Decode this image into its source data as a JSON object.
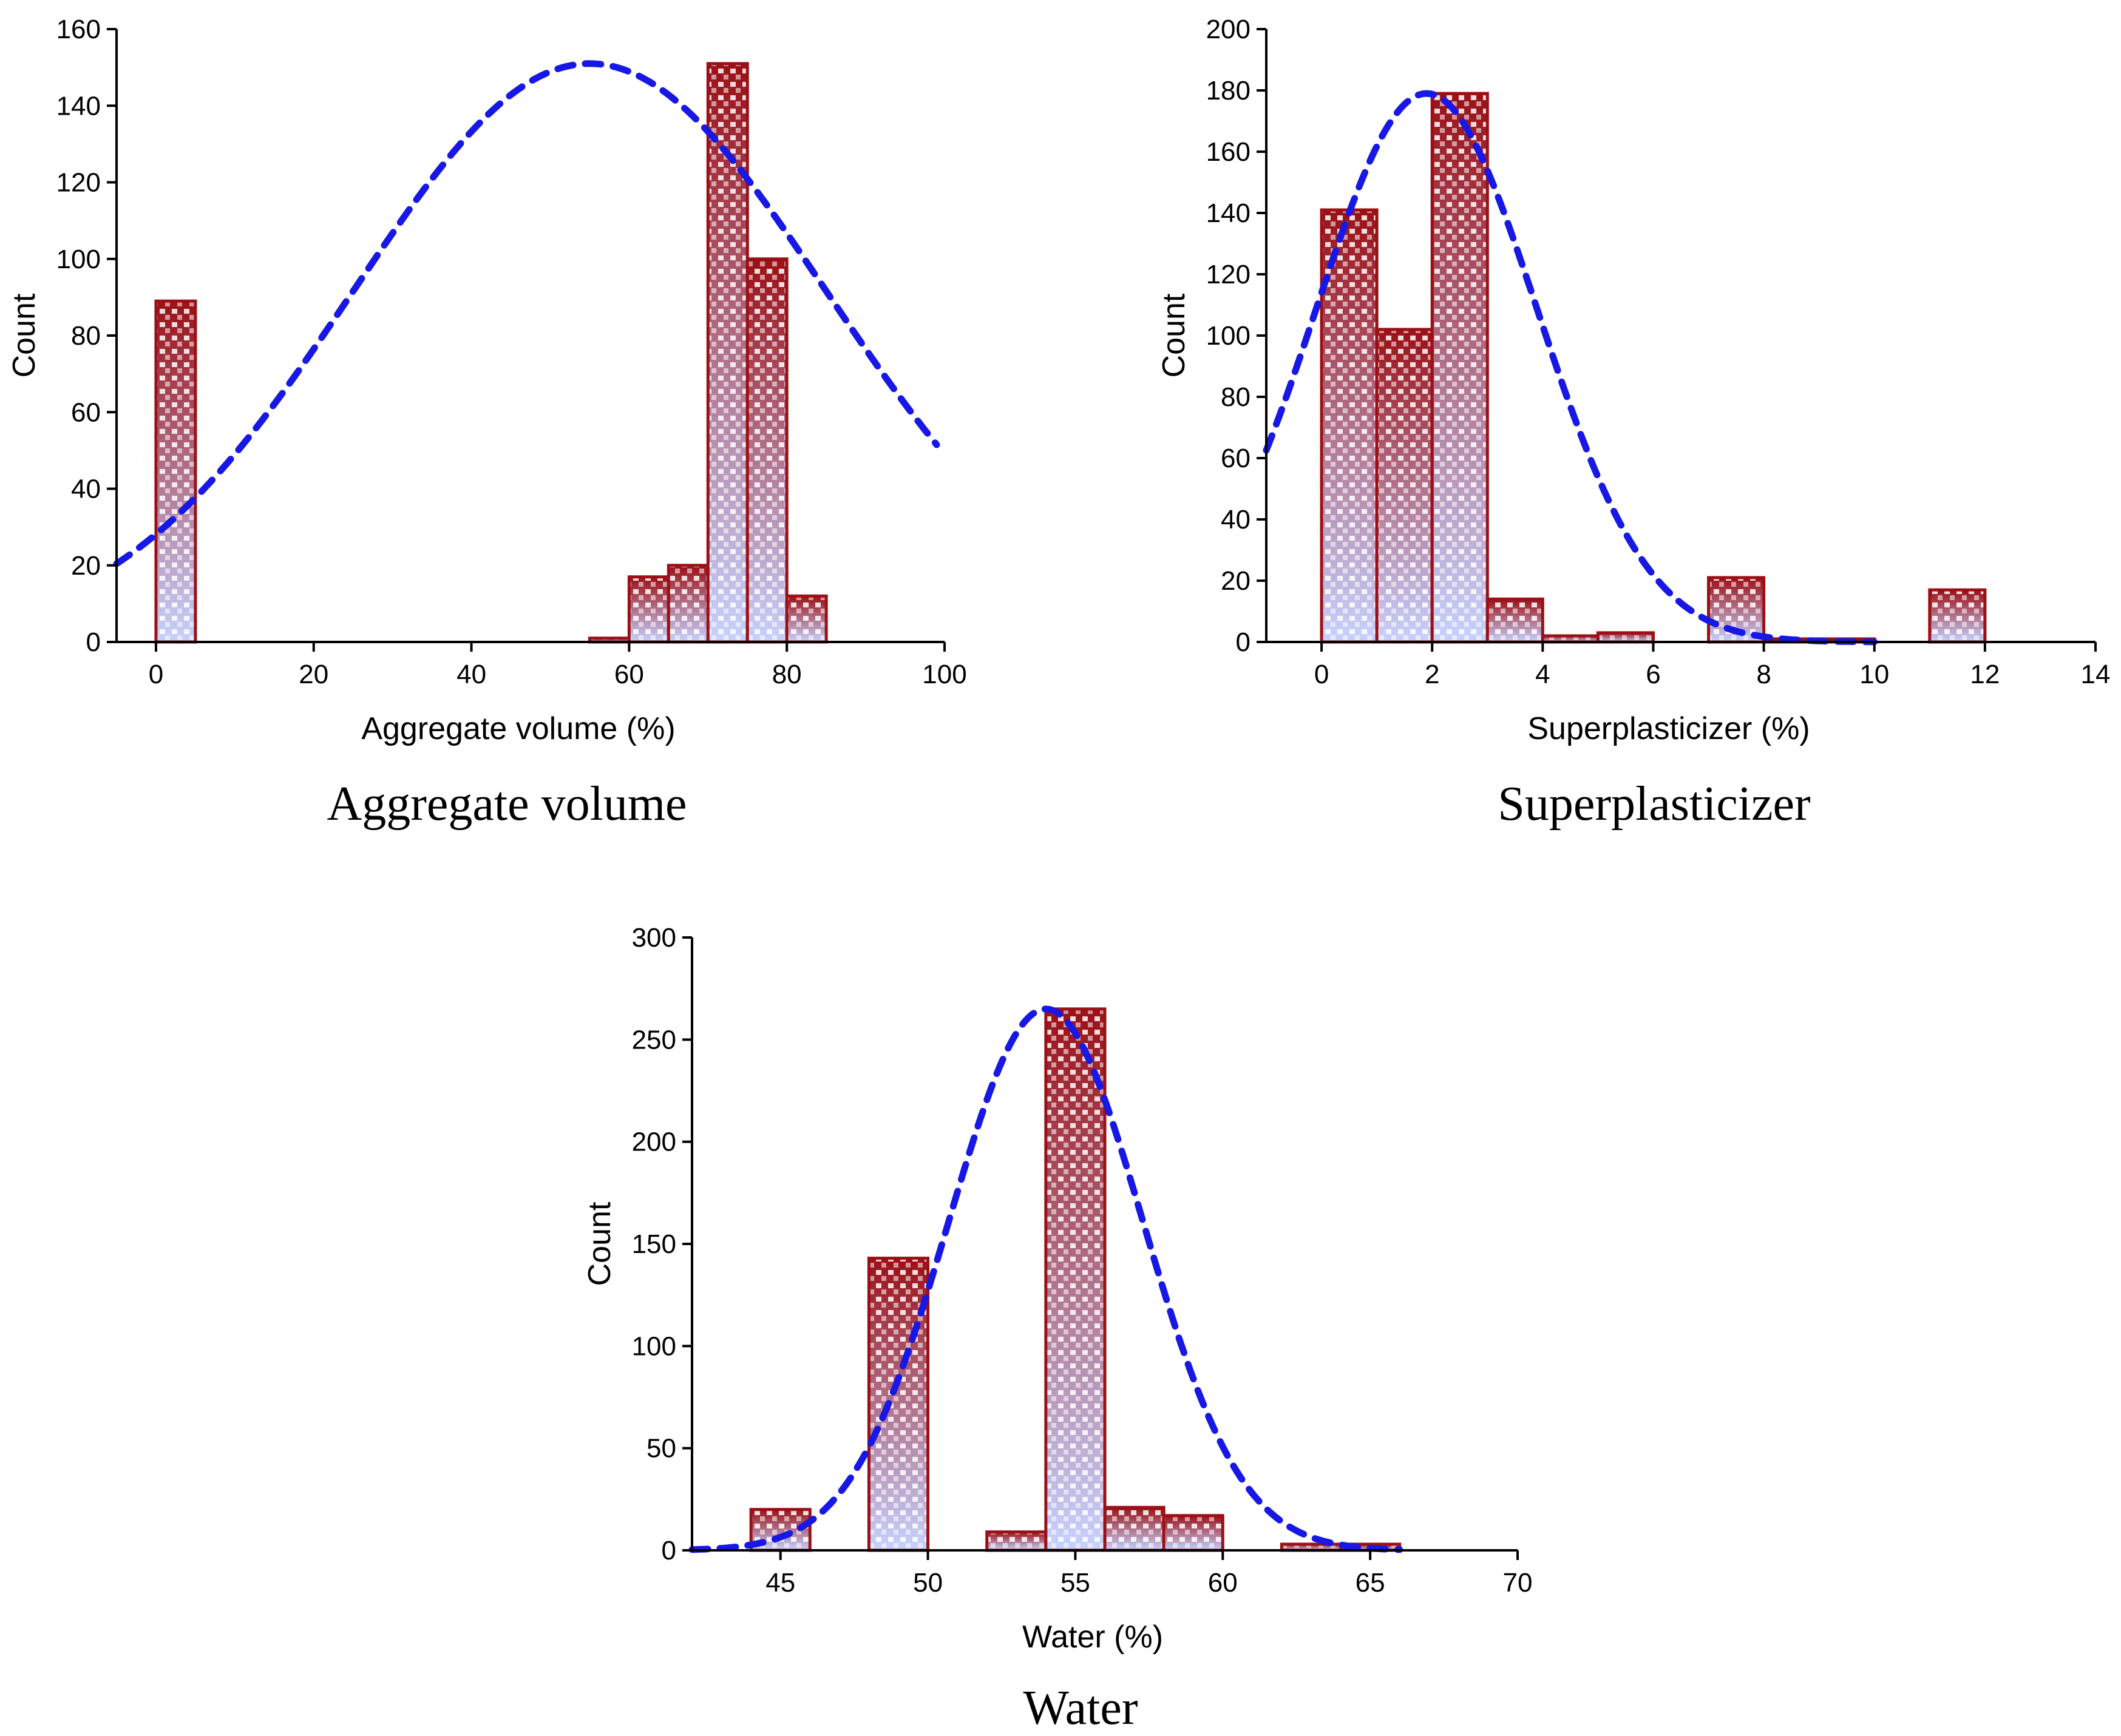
{
  "colors": {
    "bar_stroke": "#9b1016",
    "bar_top": "#9b1016",
    "bar_bottom": "#c6d2ff",
    "curve": "#1717e6",
    "axis": "#000000"
  },
  "chart_data": [
    {
      "id": "aggregate",
      "type": "bar",
      "caption": "Aggregate volume",
      "xlabel": "Aggregate volume (%)",
      "ylabel": "Count",
      "xlim": [
        -5,
        100
      ],
      "ylim": [
        0,
        160
      ],
      "xticks": [
        0,
        20,
        40,
        60,
        80,
        100
      ],
      "yticks": [
        0,
        20,
        40,
        60,
        80,
        100,
        120,
        140,
        160
      ],
      "bars": [
        {
          "x0": 0,
          "x1": 5,
          "value": 89
        },
        {
          "x0": 55,
          "x1": 60,
          "value": 1
        },
        {
          "x0": 60,
          "x1": 65,
          "value": 17
        },
        {
          "x0": 65,
          "x1": 70,
          "value": 20
        },
        {
          "x0": 70,
          "x1": 75,
          "value": 151
        },
        {
          "x0": 75,
          "x1": 80,
          "value": 100
        },
        {
          "x0": 80,
          "x1": 85,
          "value": 12
        }
      ],
      "curve": {
        "type": "normal-fit",
        "mean": 55,
        "sd": 30,
        "peak": 151,
        "x_range": [
          -5,
          99
        ]
      }
    },
    {
      "id": "superplasticizer",
      "type": "bar",
      "caption": "Superplasticizer",
      "xlabel": "Superplasticizer (%)",
      "ylabel": "Count",
      "xlim": [
        -1,
        14
      ],
      "ylim": [
        0,
        200
      ],
      "xticks": [
        0,
        2,
        4,
        6,
        8,
        10,
        12,
        14
      ],
      "yticks": [
        0,
        20,
        40,
        60,
        80,
        100,
        120,
        140,
        160,
        180,
        200
      ],
      "bars": [
        {
          "x0": 0,
          "x1": 1,
          "value": 141
        },
        {
          "x0": 1,
          "x1": 2,
          "value": 102
        },
        {
          "x0": 2,
          "x1": 3,
          "value": 179
        },
        {
          "x0": 3,
          "x1": 4,
          "value": 14
        },
        {
          "x0": 4,
          "x1": 5,
          "value": 2
        },
        {
          "x0": 5,
          "x1": 6,
          "value": 3
        },
        {
          "x0": 7,
          "x1": 8,
          "value": 21
        },
        {
          "x0": 8,
          "x1": 9,
          "value": 1
        },
        {
          "x0": 9,
          "x1": 10,
          "value": 1
        },
        {
          "x0": 11,
          "x1": 12,
          "value": 17
        }
      ],
      "curve": {
        "type": "normal-fit",
        "mean": 1.9,
        "sd": 2.0,
        "peak": 179,
        "x_range": [
          -1,
          10
        ]
      }
    },
    {
      "id": "water",
      "type": "bar",
      "caption": "Water",
      "xlabel": "Water (%)",
      "ylabel": "Count",
      "xlim": [
        42,
        70
      ],
      "ylim": [
        0,
        300
      ],
      "xticks": [
        45,
        50,
        55,
        60,
        65,
        70
      ],
      "yticks": [
        0,
        50,
        100,
        150,
        200,
        250,
        300
      ],
      "bars": [
        {
          "x0": 44,
          "x1": 46,
          "value": 20
        },
        {
          "x0": 48,
          "x1": 50,
          "value": 143
        },
        {
          "x0": 52,
          "x1": 54,
          "value": 9
        },
        {
          "x0": 54,
          "x1": 56,
          "value": 265
        },
        {
          "x0": 56,
          "x1": 58,
          "value": 21
        },
        {
          "x0": 58,
          "x1": 60,
          "value": 17
        },
        {
          "x0": 62,
          "x1": 64,
          "value": 3
        },
        {
          "x0": 64,
          "x1": 66,
          "value": 3
        }
      ],
      "curve": {
        "type": "normal-fit",
        "mean": 54,
        "sd": 3.3,
        "peak": 265,
        "x_range": [
          42,
          66
        ]
      }
    }
  ]
}
